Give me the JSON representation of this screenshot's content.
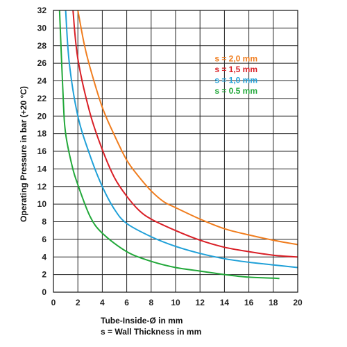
{
  "chart_data": {
    "type": "line",
    "xlabel": "Tube-Inside-Ø in mm",
    "xlabel2": "s = Wall Thickness in mm",
    "ylabel": "Operating Pressure in bar (+20 °C)",
    "xlim": [
      0,
      20
    ],
    "ylim": [
      0,
      32
    ],
    "x_ticks": [
      "0",
      "2",
      "4",
      "6",
      "8",
      "10",
      "12",
      "14",
      "16",
      "18",
      "20"
    ],
    "y_ticks": [
      "0",
      "2",
      "4",
      "6",
      "8",
      "10",
      "12",
      "14",
      "16",
      "18",
      "20",
      "22",
      "24",
      "26",
      "28",
      "30",
      "32"
    ],
    "grid": true,
    "legend_position": "top-right",
    "series": [
      {
        "name": "s = 2,0 mm",
        "color": "#f07d1e",
        "x": [
          2.0,
          2.5,
          3,
          4,
          5,
          6,
          7,
          8,
          9,
          10,
          12,
          14,
          16,
          18,
          20
        ],
        "y": [
          32,
          28.3,
          25.5,
          21.0,
          17.8,
          15.0,
          13.1,
          11.5,
          10.3,
          9.6,
          8.3,
          7.2,
          6.5,
          5.9,
          5.4
        ]
      },
      {
        "name": "s = 1,5 mm",
        "color": "#d91f26",
        "x": [
          1.6,
          2,
          3,
          4,
          5,
          6,
          7,
          8,
          10,
          12,
          14,
          16,
          18,
          20
        ],
        "y": [
          32,
          26.5,
          20.3,
          16.2,
          13.0,
          10.9,
          9.3,
          8.3,
          7.0,
          5.9,
          5.1,
          4.6,
          4.2,
          4.0
        ]
      },
      {
        "name": "s = 1,0 mm",
        "color": "#1fa0d8",
        "x": [
          1.0,
          1.3,
          2,
          3,
          4,
          5,
          6,
          8,
          10,
          12,
          14,
          16,
          18,
          20
        ],
        "y": [
          32,
          26.0,
          20.0,
          15.5,
          12.0,
          9.4,
          7.8,
          6.3,
          5.2,
          4.4,
          3.8,
          3.4,
          3.1,
          2.8
        ]
      },
      {
        "name": "s = 0.5 mm",
        "color": "#22a83a",
        "x": [
          0.5,
          0.8,
          1,
          1.5,
          2,
          3,
          4,
          6,
          8,
          10,
          12,
          14,
          16,
          18,
          18.5
        ],
        "y": [
          32,
          22.0,
          18.0,
          14.5,
          12.2,
          8.6,
          6.7,
          4.6,
          3.5,
          2.8,
          2.4,
          2.0,
          1.7,
          1.6,
          1.55
        ]
      }
    ]
  }
}
